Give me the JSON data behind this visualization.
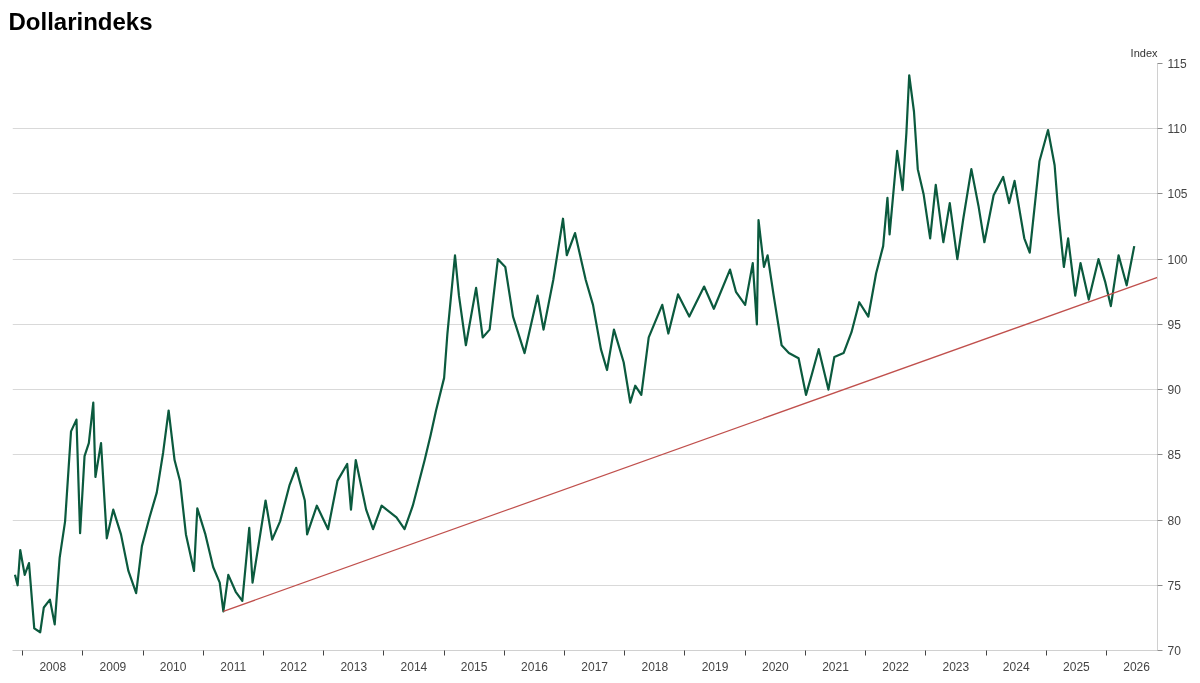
{
  "chart_data": {
    "type": "line",
    "title": "Dollarindeks",
    "ylabel": "Index",
    "grid": "y",
    "xlim": [
      "2007-11-01",
      "2026-11-06"
    ],
    "ylim": [
      70,
      115
    ],
    "yticks": [
      70,
      75,
      80,
      85,
      90,
      95,
      100,
      105,
      110,
      115
    ],
    "xticks": [
      {
        "value": "2008-01-01",
        "label": null
      },
      {
        "value": "2009-01-01",
        "label": null
      },
      {
        "value": "2010-01-01",
        "label": null
      },
      {
        "value": "2011-01-01",
        "label": null
      },
      {
        "value": "2012-01-01",
        "label": null
      },
      {
        "value": "2013-01-01",
        "label": null
      },
      {
        "value": "2014-01-01",
        "label": null
      },
      {
        "value": "2015-01-01",
        "label": null
      },
      {
        "value": "2016-01-01",
        "label": null
      },
      {
        "value": "2017-01-01",
        "label": null
      },
      {
        "value": "2018-01-01",
        "label": null
      },
      {
        "value": "2019-01-01",
        "label": null
      },
      {
        "value": "2020-01-01",
        "label": null
      },
      {
        "value": "2021-01-01",
        "label": null
      },
      {
        "value": "2022-01-01",
        "label": null
      },
      {
        "value": "2023-01-01",
        "label": null
      },
      {
        "value": "2024-01-01",
        "label": null
      },
      {
        "value": "2025-01-01",
        "label": null
      },
      {
        "value": "2026-01-01",
        "label": null
      },
      {
        "value": "2008-07-02",
        "label": "2008"
      },
      {
        "value": "2009-07-02",
        "label": "2009"
      },
      {
        "value": "2010-07-02",
        "label": "2010"
      },
      {
        "value": "2011-07-02",
        "label": "2011"
      },
      {
        "value": "2012-07-02",
        "label": "2012"
      },
      {
        "value": "2013-07-02",
        "label": "2013"
      },
      {
        "value": "2014-07-02",
        "label": "2014"
      },
      {
        "value": "2015-07-02",
        "label": "2015"
      },
      {
        "value": "2016-07-02",
        "label": "2016"
      },
      {
        "value": "2017-07-02",
        "label": "2017"
      },
      {
        "value": "2018-07-02",
        "label": "2018"
      },
      {
        "value": "2019-07-02",
        "label": "2019"
      },
      {
        "value": "2020-07-02",
        "label": "2020"
      },
      {
        "value": "2021-07-02",
        "label": "2021"
      },
      {
        "value": "2022-07-02",
        "label": "2022"
      },
      {
        "value": "2023-07-02",
        "label": "2023"
      },
      {
        "value": "2024-07-02",
        "label": "2024"
      },
      {
        "value": "2025-07-02",
        "label": "2025"
      },
      {
        "value": "2026-07-02",
        "label": "2026"
      }
    ],
    "x": [
      "2007-11-16",
      "2007-12-02",
      "2007-12-18",
      "2008-01-14",
      "2008-02-09",
      "2008-03-12",
      "2008-04-17",
      "2008-05-09",
      "2008-06-15",
      "2008-07-14",
      "2008-08-13",
      "2008-09-15",
      "2008-10-21",
      "2008-11-23",
      "2008-12-15",
      "2009-01-11",
      "2009-02-06",
      "2009-03-05",
      "2009-03-18",
      "2009-04-21",
      "2009-05-26",
      "2009-07-04",
      "2009-08-20",
      "2009-10-04",
      "2009-11-20",
      "2009-12-25",
      "2010-02-09",
      "2010-03-25",
      "2010-05-03",
      "2010-06-05",
      "2010-07-11",
      "2010-08-13",
      "2010-09-18",
      "2010-11-06",
      "2010-11-26",
      "2011-01-14",
      "2011-03-02",
      "2011-04-11",
      "2011-05-03",
      "2011-06-02",
      "2011-07-17",
      "2011-08-26",
      "2011-10-07",
      "2011-10-27",
      "2011-12-05",
      "2012-01-14",
      "2012-02-23",
      "2012-04-11",
      "2012-06-08",
      "2012-07-17",
      "2012-09-08",
      "2012-09-22",
      "2012-11-20",
      "2013-01-27",
      "2013-03-25",
      "2013-05-23",
      "2013-06-15",
      "2013-07-14",
      "2013-09-15",
      "2013-10-27",
      "2013-12-18",
      "2014-03-18",
      "2014-05-06",
      "2014-06-25",
      "2014-09-05",
      "2014-10-11",
      "2014-11-13",
      "2015-01-01",
      "2015-01-21",
      "2015-03-08",
      "2015-04-01",
      "2015-05-13",
      "2015-07-14",
      "2015-08-23",
      "2015-10-04",
      "2015-11-23",
      "2016-01-07",
      "2016-02-23",
      "2016-05-03",
      "2016-07-21",
      "2016-08-26",
      "2016-10-24",
      "2016-12-22",
      "2017-01-14",
      "2017-03-05",
      "2017-05-09",
      "2017-06-22",
      "2017-08-09",
      "2017-09-15",
      "2017-10-27",
      "2017-12-25",
      "2018-02-03",
      "2018-03-05",
      "2018-04-11",
      "2018-05-26",
      "2018-08-16",
      "2018-09-22",
      "2018-11-20",
      "2019-01-27",
      "2019-04-27",
      "2019-06-25",
      "2019-10-01",
      "2019-11-06",
      "2020-01-01",
      "2020-02-16",
      "2020-03-12",
      "2020-03-22",
      "2020-04-24",
      "2020-05-16",
      "2020-06-22",
      "2020-08-09",
      "2020-09-22",
      "2020-11-20",
      "2021-01-04",
      "2021-02-09",
      "2021-03-22",
      "2021-05-20",
      "2021-06-25",
      "2021-08-20",
      "2021-10-07",
      "2021-11-23",
      "2022-01-17",
      "2022-03-05",
      "2022-04-17",
      "2022-05-13",
      "2022-05-26",
      "2022-07-11",
      "2022-08-13",
      "2022-09-05",
      "2022-09-22",
      "2022-10-21",
      "2022-11-13",
      "2022-12-18",
      "2023-01-27",
      "2023-03-02",
      "2023-04-17",
      "2023-05-26",
      "2023-07-11",
      "2023-08-16",
      "2023-10-04",
      "2023-11-16",
      "2023-12-22",
      "2024-02-16",
      "2024-04-14",
      "2024-05-20",
      "2024-06-22",
      "2024-08-20",
      "2024-09-22",
      "2024-11-20",
      "2025-01-11",
      "2025-02-20",
      "2025-03-15",
      "2025-04-17",
      "2025-05-13",
      "2025-06-25",
      "2025-07-27",
      "2025-09-15",
      "2025-11-13",
      "2025-12-25",
      "2026-01-27",
      "2026-03-15",
      "2026-05-03",
      "2026-06-18"
    ],
    "series": [
      {
        "color": "#0b5a3e",
        "values": [
          75.8,
          75.0,
          77.7,
          75.8,
          76.7,
          71.7,
          71.4,
          73.3,
          73.9,
          72.0,
          77.1,
          79.9,
          86.8,
          87.7,
          79.0,
          84.9,
          85.9,
          89.0,
          83.3,
          85.9,
          78.6,
          80.8,
          78.9,
          76.1,
          74.4,
          78.0,
          80.2,
          82.1,
          85.2,
          88.4,
          84.6,
          83.0,
          78.9,
          76.1,
          80.9,
          78.9,
          76.4,
          75.2,
          73.0,
          75.8,
          74.5,
          73.8,
          79.4,
          75.2,
          78.3,
          81.5,
          78.5,
          79.9,
          82.7,
          84.0,
          81.5,
          78.9,
          81.1,
          79.3,
          83.0,
          84.3,
          80.8,
          84.6,
          80.8,
          79.3,
          81.1,
          80.2,
          79.3,
          81.1,
          84.6,
          86.5,
          88.4,
          90.9,
          94.3,
          100.3,
          97.2,
          93.4,
          97.8,
          94.0,
          94.6,
          100.0,
          99.4,
          95.6,
          92.8,
          97.2,
          94.6,
          98.4,
          103.1,
          100.3,
          102.0,
          98.4,
          96.5,
          93.1,
          91.5,
          94.6,
          92.1,
          89.0,
          90.3,
          89.6,
          94.0,
          96.5,
          94.3,
          97.3,
          95.6,
          97.9,
          96.2,
          99.2,
          97.5,
          96.5,
          99.7,
          95.0,
          103.0,
          99.4,
          100.3,
          97.2,
          93.4,
          92.8,
          92.4,
          89.6,
          91.2,
          93.1,
          90.0,
          92.5,
          92.8,
          94.4,
          96.7,
          95.6,
          98.9,
          101.0,
          104.7,
          101.9,
          108.3,
          105.3,
          109.7,
          114.1,
          111.3,
          106.9,
          105.0,
          101.6,
          105.7,
          101.3,
          104.3,
          100.0,
          103.1,
          106.9,
          104.1,
          101.3,
          104.9,
          106.3,
          104.3,
          106.0,
          101.6,
          100.5,
          107.5,
          109.9,
          107.2,
          103.5,
          99.4,
          101.6,
          97.2,
          99.7,
          96.9,
          100.0,
          98.2,
          96.4,
          100.3,
          98.0,
          101.0
        ]
      },
      {
        "type": "line",
        "color": "#c0504d",
        "x": [
          "2011-05-03",
          "2026-11-06"
        ],
        "values": [
          73.0,
          98.6
        ]
      }
    ]
  }
}
